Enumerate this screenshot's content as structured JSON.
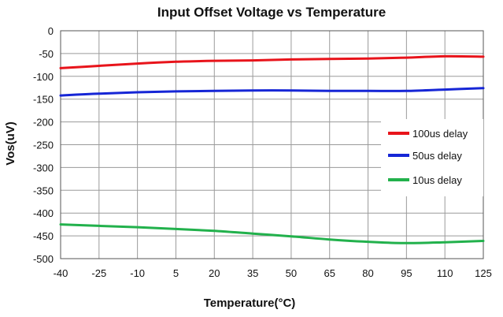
{
  "chart_data": {
    "type": "line",
    "title": "Input Offset Voltage vs Temperature",
    "xlabel": "Temperature(°C)",
    "ylabel": "Vos(uV)",
    "x": [
      -40,
      -25,
      -10,
      5,
      20,
      35,
      50,
      65,
      80,
      95,
      110,
      125
    ],
    "xticks": [
      "-40",
      "-25",
      "-10",
      "5",
      "20",
      "35",
      "50",
      "65",
      "80",
      "95",
      "110",
      "125"
    ],
    "yticks": [
      "0",
      "-50",
      "-100",
      "-150",
      "-200",
      "-250",
      "-300",
      "-350",
      "-400",
      "-450",
      "-500"
    ],
    "xlim": [
      -40,
      125
    ],
    "ylim": [
      -500,
      0
    ],
    "grid": true,
    "legend_position": "right",
    "series": [
      {
        "name": "100us delay",
        "color": "#e8141b",
        "values": [
          -82,
          -77,
          -72,
          -68,
          -66,
          -65,
          -63,
          -62,
          -61,
          -59,
          -56,
          -57
        ]
      },
      {
        "name": "50us delay",
        "color": "#1626d6",
        "values": [
          -142,
          -138,
          -135,
          -133,
          -132,
          -131,
          -131,
          -132,
          -132,
          -132,
          -129,
          -126
        ]
      },
      {
        "name": "10us delay",
        "color": "#22b14c",
        "values": [
          -425,
          -428,
          -431,
          -435,
          -439,
          -445,
          -451,
          -458,
          -463,
          -466,
          -464,
          -461
        ]
      }
    ]
  }
}
